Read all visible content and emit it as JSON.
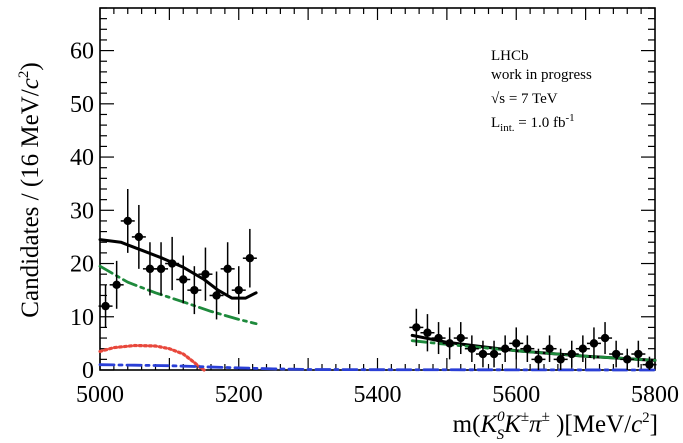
{
  "chart_data": {
    "type": "scatter",
    "xlabel_parts": {
      "prefix": "m(",
      "k": "K",
      "k_sub": "S",
      "k_sup": "0",
      "k2": "K",
      "pm1": "±",
      "pi": "π",
      "pm2": "±",
      "mid": " )[MeV/",
      "c": "c",
      "c_sup": "2",
      "suffix": "]"
    },
    "ylabel_parts": {
      "main": "Candidates / (16 MeV/",
      "c": "c",
      "c_sup": "2",
      "suffix": ")"
    },
    "xlim": [
      5000,
      5800
    ],
    "ylim": [
      0,
      68
    ],
    "xticks": [
      5000,
      5200,
      5400,
      5600,
      5800
    ],
    "yticks": [
      0,
      10,
      20,
      30,
      40,
      50,
      60
    ],
    "legend": {
      "line1": "LHCb",
      "line2": "work in progress",
      "sqrt_sym": "√s",
      "sqrt_rest": " = 7 TeV",
      "lumi_L": "L",
      "lumi_sub": "int.",
      "lumi_mid": " = 1.0 fb",
      "lumi_sup": "-1"
    },
    "data_points": [
      {
        "x": 5008,
        "y": 12,
        "err": 4
      },
      {
        "x": 5024,
        "y": 16,
        "err": 4.5
      },
      {
        "x": 5040,
        "y": 28,
        "err": 6
      },
      {
        "x": 5056,
        "y": 25,
        "err": 6
      },
      {
        "x": 5072,
        "y": 19,
        "err": 5
      },
      {
        "x": 5088,
        "y": 19,
        "err": 5
      },
      {
        "x": 5104,
        "y": 20,
        "err": 5
      },
      {
        "x": 5120,
        "y": 17,
        "err": 4.5
      },
      {
        "x": 5136,
        "y": 15,
        "err": 4.5
      },
      {
        "x": 5152,
        "y": 18,
        "err": 5
      },
      {
        "x": 5168,
        "y": 14,
        "err": 4.5
      },
      {
        "x": 5184,
        "y": 19,
        "err": 5
      },
      {
        "x": 5200,
        "y": 15,
        "err": 4.5
      },
      {
        "x": 5216,
        "y": 21,
        "err": 5.5
      },
      {
        "x": 5456,
        "y": 8,
        "err": 3.5
      },
      {
        "x": 5472,
        "y": 7,
        "err": 3.5
      },
      {
        "x": 5488,
        "y": 6,
        "err": 3
      },
      {
        "x": 5504,
        "y": 5,
        "err": 3
      },
      {
        "x": 5520,
        "y": 6,
        "err": 3
      },
      {
        "x": 5536,
        "y": 4,
        "err": 2.5
      },
      {
        "x": 5552,
        "y": 3,
        "err": 2.5
      },
      {
        "x": 5568,
        "y": 3,
        "err": 2.5
      },
      {
        "x": 5584,
        "y": 4,
        "err": 2.5
      },
      {
        "x": 5600,
        "y": 5,
        "err": 3
      },
      {
        "x": 5616,
        "y": 4,
        "err": 2.5
      },
      {
        "x": 5632,
        "y": 2,
        "err": 2
      },
      {
        "x": 5648,
        "y": 4,
        "err": 2.5
      },
      {
        "x": 5664,
        "y": 2,
        "err": 2
      },
      {
        "x": 5680,
        "y": 3,
        "err": 2.5
      },
      {
        "x": 5696,
        "y": 4,
        "err": 2.5
      },
      {
        "x": 5712,
        "y": 5,
        "err": 3
      },
      {
        "x": 5728,
        "y": 6,
        "err": 3
      },
      {
        "x": 5744,
        "y": 3,
        "err": 2.5
      },
      {
        "x": 5760,
        "y": 2,
        "err": 2
      },
      {
        "x": 5776,
        "y": 3,
        "err": 2.5
      },
      {
        "x": 5792,
        "y": 1,
        "err": 1.5
      }
    ],
    "series": [
      {
        "style": "solid",
        "color": "#000000",
        "segments": [
          [
            [
              5000,
              24.5
            ],
            [
              5030,
              24
            ],
            [
              5060,
              22.5
            ],
            [
              5090,
              21
            ],
            [
              5120,
              19.3
            ],
            [
              5150,
              17
            ],
            [
              5170,
              15
            ],
            [
              5190,
              13.5
            ],
            [
              5210,
              13.5
            ],
            [
              5225,
              14.5
            ]
          ],
          [
            [
              5450,
              6.5
            ],
            [
              5500,
              5.2
            ],
            [
              5550,
              4.4
            ],
            [
              5600,
              3.6
            ],
            [
              5650,
              3.1
            ],
            [
              5700,
              2.6
            ],
            [
              5750,
              2.2
            ],
            [
              5800,
              1.8
            ]
          ]
        ]
      },
      {
        "style": "dash-dot",
        "color": "#1e8a3c",
        "segments": [
          [
            [
              5000,
              19.5
            ],
            [
              5040,
              16.5
            ],
            [
              5080,
              14.5
            ],
            [
              5120,
              12.8
            ],
            [
              5160,
              11
            ],
            [
              5200,
              9.5
            ],
            [
              5225,
              8.7
            ]
          ],
          [
            [
              5450,
              5.5
            ],
            [
              5500,
              4.8
            ],
            [
              5550,
              4.2
            ],
            [
              5600,
              3.6
            ],
            [
              5650,
              3.1
            ],
            [
              5700,
              2.6
            ],
            [
              5750,
              2.2
            ],
            [
              5800,
              1.8
            ]
          ]
        ]
      },
      {
        "style": "dotted",
        "color": "#e8483c",
        "segments": [
          [
            [
              5000,
              3.5
            ],
            [
              5020,
              4.2
            ],
            [
              5050,
              4.6
            ],
            [
              5080,
              4.5
            ],
            [
              5100,
              4.0
            ],
            [
              5120,
              3.0
            ],
            [
              5135,
              1.5
            ],
            [
              5145,
              0.4
            ],
            [
              5150,
              0
            ]
          ]
        ]
      },
      {
        "style": "dash-dot",
        "color": "#2a3fd6",
        "segments": [
          [
            [
              5000,
              1.0
            ],
            [
              5050,
              0.9
            ],
            [
              5100,
              0.8
            ],
            [
              5150,
              0.6
            ],
            [
              5200,
              0.4
            ],
            [
              5250,
              0.2
            ],
            [
              5300,
              0.1
            ],
            [
              5400,
              0.05
            ],
            [
              5800,
              0.0
            ]
          ]
        ]
      }
    ]
  }
}
